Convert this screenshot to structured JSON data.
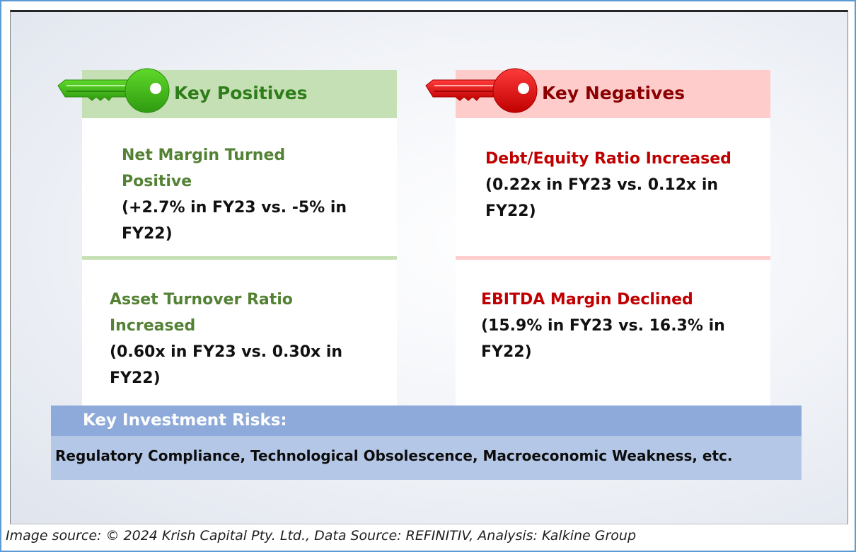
{
  "positives": {
    "title": "Key Positives",
    "accent": "#2e9e12",
    "header_bg": "#c5e0b4",
    "items": [
      {
        "title_line1": "Net Margin Turned",
        "title_line2": "Positive",
        "detail_line1": "(+2.7% in FY23 vs. -5% in",
        "detail_line2": "FY22)"
      },
      {
        "title_line1": "Asset Turnover Ratio",
        "title_line2": "Increased",
        "detail_line1": "(0.60x in FY23 vs. 0.30x in",
        "detail_line2": "FY22)"
      }
    ]
  },
  "negatives": {
    "title": "Key Negatives",
    "accent": "#c00000",
    "header_bg": "#ffcccc",
    "items": [
      {
        "title_line1": "Debt/Equity Ratio Increased",
        "detail_line1": "(0.22x in FY23 vs. 0.12x in",
        "detail_line2": "FY22)"
      },
      {
        "title_line1": "EBITDA Margin Declined",
        "detail_line1": "(15.9% in FY23 vs. 16.3% in",
        "detail_line2": "FY22)"
      }
    ]
  },
  "risks": {
    "title": "Key Investment Risks:",
    "body": "Regulatory Compliance, Technological Obsolescence, Macroeconomic Weakness, etc."
  },
  "caption": "Image source: © 2024 Krish Capital Pty. Ltd., Data Source: REFINITIV, Analysis: Kalkine Group",
  "icons": [
    "green-key-icon",
    "red-key-icon"
  ]
}
